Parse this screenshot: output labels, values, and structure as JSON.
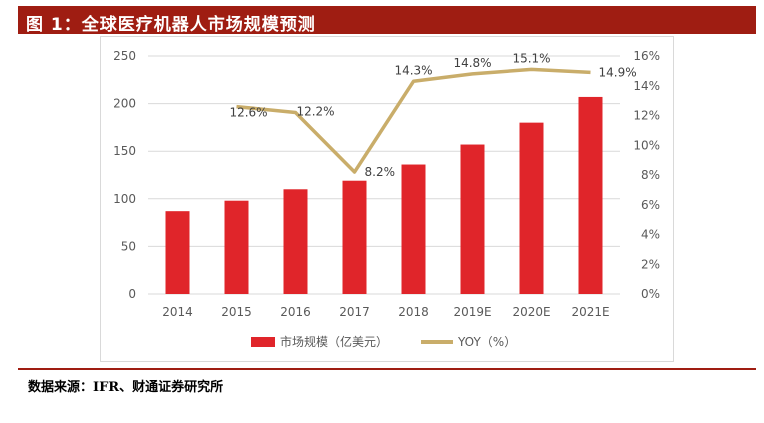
{
  "header": {
    "title": "图 1：全球医疗机器人市场规模预测"
  },
  "footer": {
    "source": "数据来源：IFR、财通证券研究所"
  },
  "colors": {
    "header_bg": "#9f1d12",
    "bar": "#e0252a",
    "line": "#c9ad6a",
    "grid": "#d9d9d9",
    "axis_text": "#595959"
  },
  "chart_data": {
    "type": "bar",
    "categories": [
      "2014",
      "2015",
      "2016",
      "2017",
      "2018",
      "2019E",
      "2020E",
      "2021E"
    ],
    "series": [
      {
        "name": "市场规模（亿美元）",
        "type": "bar",
        "axis": "left",
        "values": [
          87,
          98,
          110,
          119,
          136,
          157,
          180,
          207
        ]
      },
      {
        "name": "YOY（%）",
        "type": "line",
        "axis": "right",
        "values": [
          null,
          12.6,
          12.2,
          8.2,
          14.3,
          14.8,
          15.1,
          14.9
        ],
        "labels": [
          "",
          "12.6%",
          "12.2%",
          "8.2%",
          "14.3%",
          "14.8%",
          "15.1%",
          "14.9%"
        ]
      }
    ],
    "left_axis": {
      "min": 0,
      "max": 250,
      "ticks": [
        "0",
        "50",
        "100",
        "150",
        "200",
        "250"
      ]
    },
    "right_axis": {
      "min": 0,
      "max": 16,
      "ticks": [
        "0%",
        "2%",
        "4%",
        "6%",
        "8%",
        "10%",
        "12%",
        "14%",
        "16%"
      ]
    },
    "grid": true,
    "legend_position": "bottom"
  }
}
